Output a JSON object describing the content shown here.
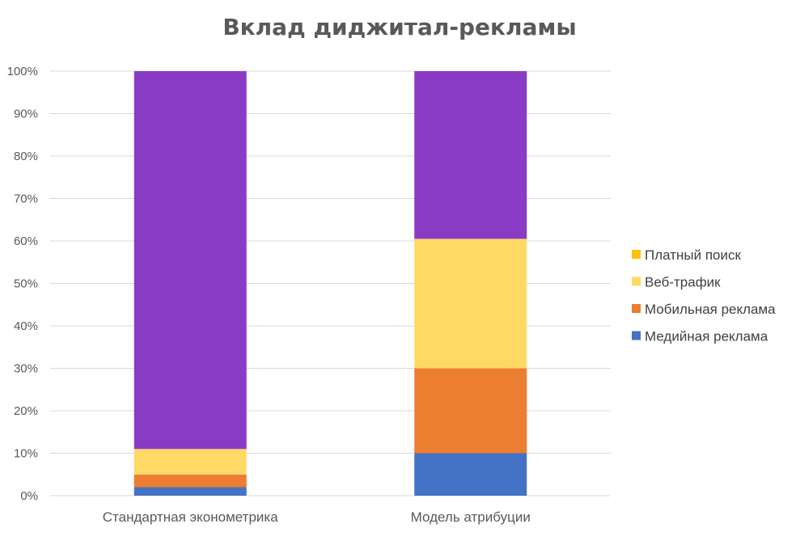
{
  "chart_data": {
    "type": "bar",
    "stacked": true,
    "title": "Вклад диджитал-рекламы",
    "xlabel": "",
    "ylabel": "",
    "categories": [
      "Стандартная эконометрика",
      "Модель атрибуции"
    ],
    "y_ticks": [
      "0%",
      "10%",
      "20%",
      "30%",
      "40%",
      "50%",
      "60%",
      "70%",
      "80%",
      "90%",
      "100%"
    ],
    "ylim": [
      0,
      100
    ],
    "grid": true,
    "legend_position": "right",
    "series": [
      {
        "name": "Медийная реклама",
        "color": "#4472C4",
        "values": [
          2,
          10
        ]
      },
      {
        "name": "Мобильная реклама",
        "color": "#ED7D31",
        "values": [
          3,
          20
        ]
      },
      {
        "name": "Веб-трафик",
        "color": "#FFD966",
        "values": [
          6,
          30.5
        ]
      },
      {
        "name": "Платный поиск",
        "color": "#FFC000",
        "values": [
          0,
          0
        ]
      },
      {
        "name": "",
        "color": "#8A3BC5",
        "values": [
          89,
          39.5
        ]
      }
    ],
    "legend": [
      "Платный поиск",
      "Веб-трафик",
      "Мобильная реклама",
      "Медийная реклама"
    ]
  }
}
